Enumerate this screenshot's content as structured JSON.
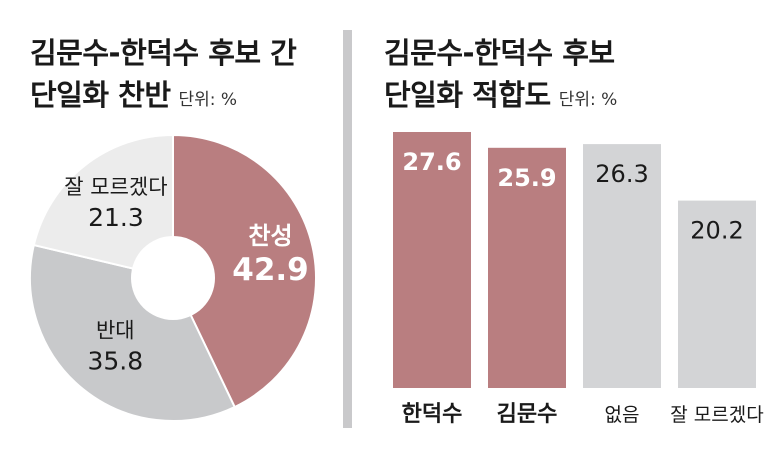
{
  "colors": {
    "highlight": "#b97e80",
    "light_gray": "#ececec",
    "mid_gray": "#c8c9cb",
    "bar_gray": "#d3d4d6",
    "divider": "#c9c9cb"
  },
  "left": {
    "title_line1": "김문수-한덕수 후보 간",
    "title_line2": "단일화 찬반",
    "unit": "단위: %"
  },
  "right": {
    "title_line1": "김문수-한덕수 후보",
    "title_line2": "단일화 적합도",
    "unit": "단위: %"
  },
  "chart_data": [
    {
      "type": "pie",
      "title": "김문수-한덕수 후보 간 단일화 찬반",
      "unit": "단위: %",
      "slices": [
        {
          "label": "찬성",
          "value": 42.9,
          "value_label": "42.9",
          "color": "#b97e80",
          "text_color": "#ffffff",
          "bold": true
        },
        {
          "label": "반대",
          "value": 35.8,
          "value_label": "35.8",
          "color": "#c8c9cb",
          "text_color": "#1a1a1a",
          "bold": false
        },
        {
          "label": "잘 모르겠다",
          "value": 21.3,
          "value_label": "21.3",
          "color": "#ececec",
          "text_color": "#1a1a1a",
          "bold": false
        }
      ]
    },
    {
      "type": "bar",
      "title": "김문수-한덕수 후보 단일화 적합도",
      "unit": "단위: %",
      "categories": [
        "한덕수",
        "김문수",
        "없음",
        "잘 모르겠다"
      ],
      "values": [
        27.6,
        25.9,
        26.3,
        20.2
      ],
      "value_labels": [
        "27.6",
        "25.9",
        "26.3",
        "20.2"
      ],
      "colors": [
        "#b97e80",
        "#b97e80",
        "#d3d4d6",
        "#d3d4d6"
      ],
      "label_colors": [
        "#ffffff",
        "#ffffff",
        "#1a1a1a",
        "#1a1a1a"
      ],
      "category_bold": [
        true,
        true,
        false,
        false
      ]
    }
  ]
}
